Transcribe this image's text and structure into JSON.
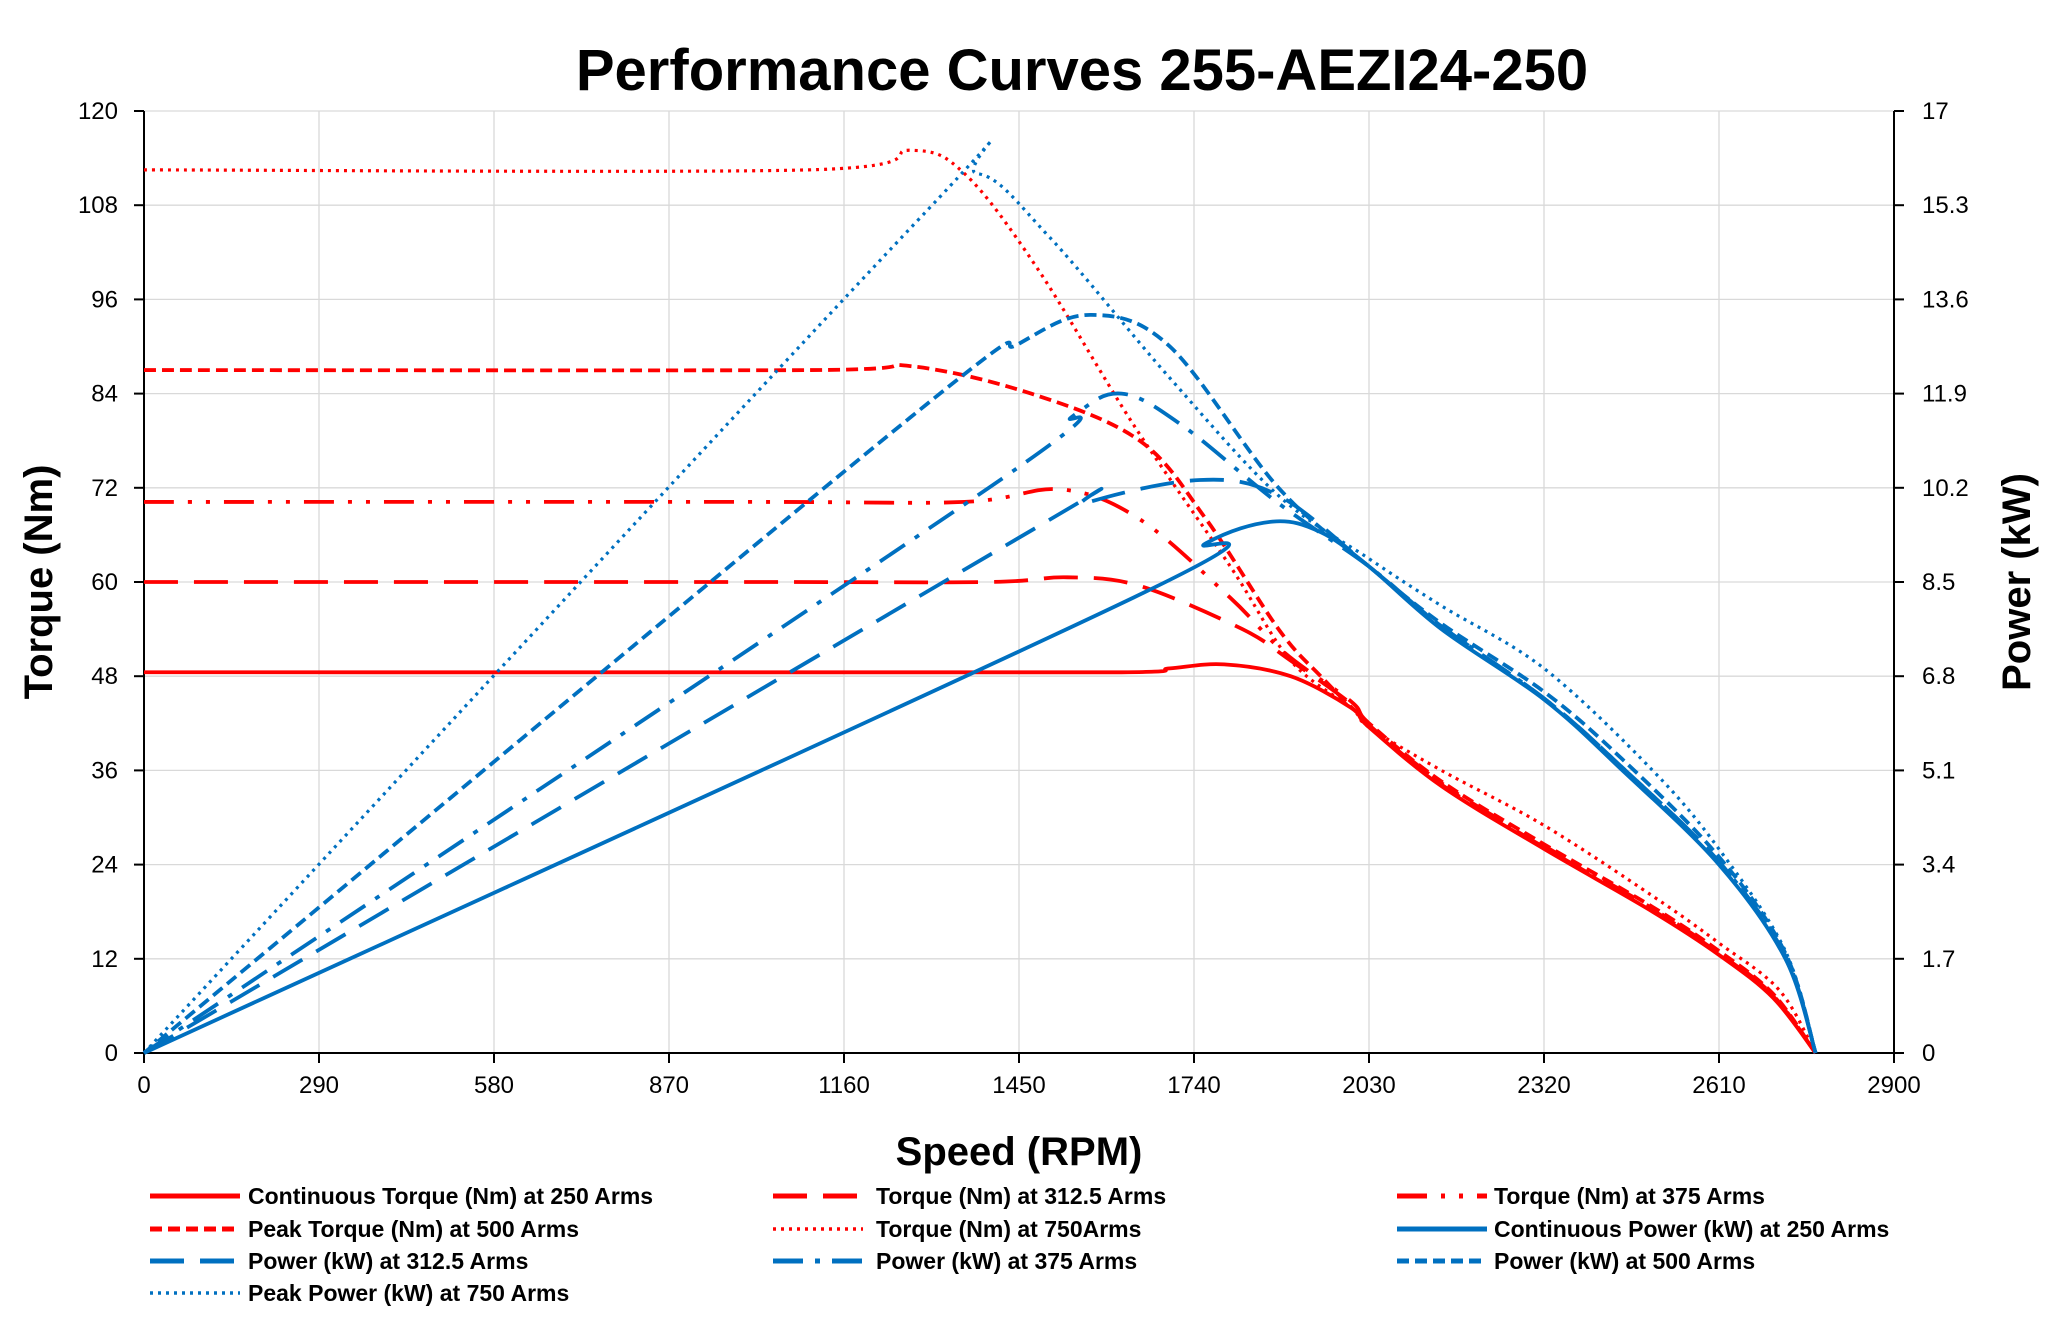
{
  "chart_data": {
    "type": "line",
    "title": "Performance Curves 255-AEZI24-250",
    "xlabel": "Speed (RPM)",
    "ylabel": "Torque (Nm)",
    "y2label": "Power (kW)",
    "xlim": [
      0,
      2900
    ],
    "ylim": [
      0,
      120
    ],
    "y2lim": [
      0,
      17
    ],
    "xticks": [
      "0",
      "290",
      "580",
      "870",
      "1160",
      "1450",
      "1740",
      "2030",
      "2320",
      "2610",
      "2900"
    ],
    "yticks": [
      "0",
      "12",
      "24",
      "36",
      "48",
      "60",
      "72",
      "84",
      "96",
      "108",
      "120"
    ],
    "y2ticks": [
      "0",
      "1.7",
      "3.4",
      "5.1",
      "6.8",
      "8.5",
      "10.2",
      "11.9",
      "13.6",
      "15.3",
      "17"
    ],
    "grid": true,
    "legend_placement": "bottom",
    "colors": {
      "torque": "#ff0000",
      "power": "#0070c0"
    },
    "series": [
      {
        "name": "Continuous Torque (Nm) at 250 Arms",
        "axis": "left",
        "style": "solid",
        "color": "#ff0000",
        "x": [
          0,
          1000,
          1620,
          1700,
          1790,
          1900,
          2000,
          2030,
          2150,
          2320,
          2500,
          2610,
          2700,
          2770
        ],
        "y": [
          48.5,
          48.5,
          48.5,
          49,
          49.5,
          48,
          44,
          41.5,
          34,
          26,
          18,
          12.5,
          7,
          0
        ]
      },
      {
        "name": "Torque (Nm) at 312.5 Arms",
        "axis": "left",
        "style": "long-dash",
        "color": "#ff0000",
        "x": [
          0,
          1000,
          1400,
          1530,
          1650,
          1820,
          1900,
          2000,
          2030,
          2150,
          2320,
          2500,
          2610,
          2700,
          2770
        ],
        "y": [
          60,
          60,
          60,
          60.6,
          59.5,
          54,
          50,
          44.5,
          41.8,
          34.2,
          26.2,
          18.2,
          12.7,
          7.2,
          0
        ]
      },
      {
        "name": "Torque (Nm) at 375 Arms",
        "axis": "left",
        "style": "dash-dot-dot",
        "color": "#ff0000",
        "x": [
          0,
          1000,
          1360,
          1520,
          1650,
          1800,
          1890,
          2000,
          2030,
          2150,
          2320,
          2500,
          2610,
          2700,
          2770
        ],
        "y": [
          70.2,
          70.2,
          70.2,
          71.8,
          68,
          58,
          51,
          44.8,
          42,
          34.4,
          26.4,
          18.4,
          12.8,
          7.3,
          0
        ]
      },
      {
        "name": "Peak Torque (Nm) at 500 Arms",
        "axis": "left",
        "style": "short-dash",
        "color": "#ff0000",
        "x": [
          0,
          1100,
          1270,
          1470,
          1650,
          1760,
          1880,
          1950,
          2030,
          2150,
          2320,
          2500,
          2610,
          2700,
          2770
        ],
        "y": [
          87,
          87,
          87.5,
          84,
          78,
          68,
          54,
          48,
          42,
          34.6,
          26.6,
          18.6,
          13,
          7.5,
          0
        ]
      },
      {
        "name": "Torque (Nm) at 750Arms",
        "axis": "left",
        "style": "dot",
        "color": "#ff0000",
        "x": [
          0,
          1100,
          1270,
          1360,
          1480,
          1640,
          1800,
          1900,
          2000,
          2030,
          2150,
          2320,
          2500,
          2610,
          2710,
          2770
        ],
        "y": [
          112.5,
          112.5,
          115,
          112,
          100,
          80,
          62,
          50,
          44,
          41.5,
          36,
          29,
          20,
          14,
          8,
          0
        ]
      },
      {
        "name": "Continuous Power (kW) at 250 Arms",
        "axis": "right",
        "style": "solid",
        "color": "#0070c0",
        "x": [
          0,
          1640,
          1760,
          1870,
          1950,
          2030,
          2150,
          2320,
          2450,
          2610,
          2720,
          2770
        ],
        "y": [
          0,
          8.22,
          9.2,
          9.59,
          9.4,
          8.78,
          7.65,
          6.38,
          5.1,
          3.4,
          1.7,
          0
        ]
      },
      {
        "name": "Power (kW) at 312.5 Arms",
        "axis": "right",
        "style": "long-dash",
        "color": "#0070c0",
        "x": [
          0,
          1450,
          1560,
          1750,
          1880,
          2030,
          2150,
          2320,
          2450,
          2610,
          2720,
          2770
        ],
        "y": [
          0,
          9.3,
          9.92,
          10.34,
          10.06,
          8.78,
          7.7,
          6.4,
          5.15,
          3.45,
          1.75,
          0
        ]
      },
      {
        "name": "Power (kW) at 375 Arms",
        "axis": "right",
        "style": "dash-dot",
        "color": "#0070c0",
        "x": [
          0,
          1400,
          1540,
          1620,
          1720,
          1880,
          2030,
          2150,
          2320,
          2450,
          2610,
          2720,
          2770
        ],
        "y": [
          0,
          10.2,
          11.5,
          11.9,
          11.33,
          9.92,
          8.78,
          7.7,
          6.4,
          5.15,
          3.45,
          1.75,
          0
        ]
      },
      {
        "name": "Power (kW) at 500 Arms",
        "axis": "right",
        "style": "short-dash",
        "color": "#0070c0",
        "x": [
          0,
          1270,
          1450,
          1570,
          1700,
          1880,
          2030,
          2150,
          2320,
          2450,
          2610,
          2720,
          2770
        ],
        "y": [
          0,
          11.47,
          12.8,
          13.32,
          12.75,
          10.2,
          8.78,
          7.75,
          6.52,
          5.3,
          3.54,
          1.8,
          0
        ]
      },
      {
        "name": "Peak Power (kW) at 750 Arms",
        "axis": "right",
        "style": "dot",
        "color": "#0070c0",
        "x": [
          0,
          1280,
          1380,
          1500,
          1700,
          1880,
          2030,
          2150,
          2320,
          2500,
          2610,
          2720,
          2770
        ],
        "y": [
          0,
          15.0,
          15.87,
          14.73,
          12.18,
          10.06,
          8.92,
          8.07,
          6.94,
          5.1,
          3.68,
          1.84,
          0
        ]
      }
    ]
  }
}
